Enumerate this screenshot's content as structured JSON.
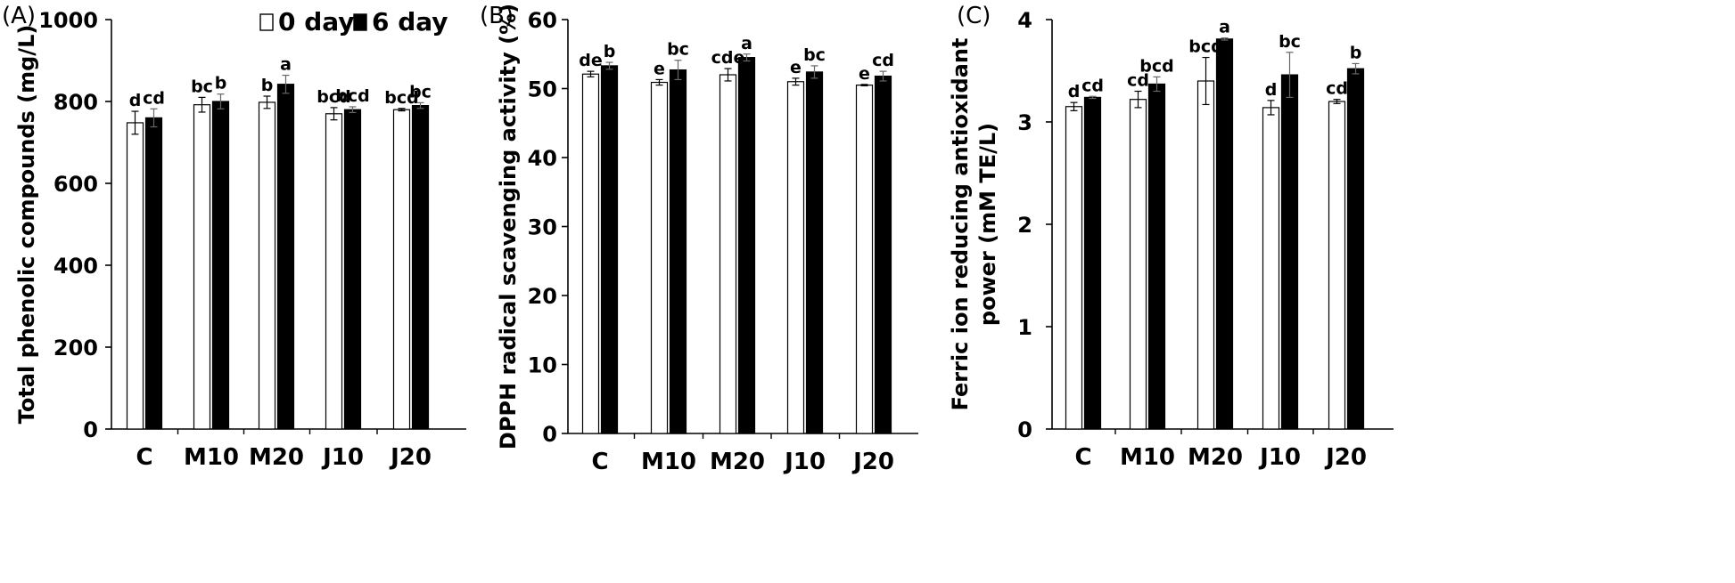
{
  "chart_data": [
    {
      "type": "bar",
      "panel_label": "(A)",
      "ylabel": "Total phenolic compounds (mg/L)",
      "xlabel": "",
      "categories": [
        "C",
        "M10",
        "M20",
        "J10",
        "J20"
      ],
      "ylim": [
        0,
        1000
      ],
      "yticks": [
        "0",
        "200",
        "400",
        "600",
        "800",
        "1000"
      ],
      "grid": false,
      "legend_position": "top-right",
      "series": [
        {
          "name": "0 day",
          "fill": "#ffffff",
          "stroke": "#000000",
          "values": [
            748,
            792,
            798,
            770,
            780
          ],
          "errors": [
            28,
            18,
            15,
            15,
            3
          ],
          "letters": [
            "d",
            "bc",
            "b",
            "bcd",
            "bcd"
          ]
        },
        {
          "name": "6 day",
          "fill": "#000000",
          "stroke": "#000000",
          "values": [
            760,
            800,
            842,
            780,
            790
          ],
          "errors": [
            22,
            18,
            22,
            7,
            7
          ],
          "letters": [
            "cd",
            "b",
            "a",
            "bcd",
            "bc"
          ]
        }
      ]
    },
    {
      "type": "bar",
      "panel_label": "(B)",
      "ylabel": "DPPH radical scavenging activity (%)",
      "xlabel": "",
      "categories": [
        "C",
        "M10",
        "M20",
        "J10",
        "J20"
      ],
      "ylim": [
        0,
        60
      ],
      "yticks": [
        "0",
        "10",
        "20",
        "30",
        "40",
        "50",
        "60"
      ],
      "grid": false,
      "series": [
        {
          "name": "0 day",
          "fill": "#ffffff",
          "stroke": "#000000",
          "values": [
            52.1,
            50.9,
            52.0,
            51.0,
            50.5
          ],
          "errors": [
            0.4,
            0.4,
            0.9,
            0.5,
            0.1
          ],
          "letters": [
            "de",
            "e",
            "cde",
            "e",
            "e"
          ]
        },
        {
          "name": "6 day",
          "fill": "#000000",
          "stroke": "#000000",
          "values": [
            53.3,
            52.7,
            54.5,
            52.4,
            51.8
          ],
          "errors": [
            0.5,
            1.4,
            0.5,
            0.9,
            0.7
          ],
          "letters": [
            "b",
            "bc",
            "a",
            "bc",
            "cd"
          ]
        }
      ]
    },
    {
      "type": "bar",
      "panel_label": "(C)",
      "ylabel_lines": [
        "Ferric ion reducing antioxidant",
        "power (mM TE/L)"
      ],
      "xlabel": "",
      "categories": [
        "C",
        "M10",
        "M20",
        "J10",
        "J20"
      ],
      "ylim": [
        0,
        4
      ],
      "yticks": [
        "0",
        "1",
        "2",
        "3",
        "4"
      ],
      "grid": false,
      "series": [
        {
          "name": "0 day",
          "fill": "#ffffff",
          "stroke": "#000000",
          "values": [
            3.15,
            3.22,
            3.4,
            3.14,
            3.2
          ],
          "errors": [
            0.04,
            0.08,
            0.23,
            0.07,
            0.02
          ],
          "letters": [
            "d",
            "cd",
            "bcd",
            "d",
            "cd"
          ]
        },
        {
          "name": "6 day",
          "fill": "#000000",
          "stroke": "#000000",
          "values": [
            3.24,
            3.37,
            3.81,
            3.46,
            3.52
          ],
          "errors": [
            0.01,
            0.07,
            0.01,
            0.22,
            0.05
          ],
          "letters": [
            "cd",
            "bcd",
            "a",
            "bc",
            "b"
          ]
        }
      ]
    }
  ]
}
